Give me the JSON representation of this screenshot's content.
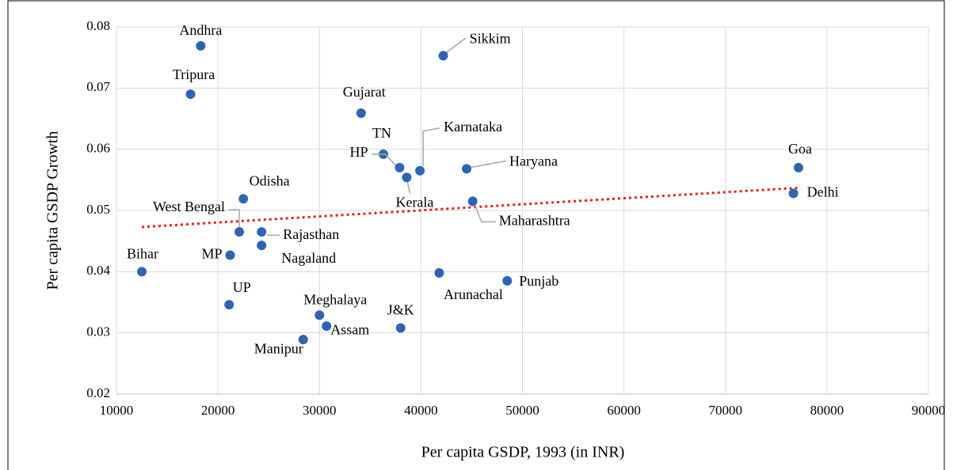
{
  "chart_data": {
    "type": "scatter",
    "x_label": "Per capita GSDP, 1993 (in INR)",
    "y_label": "Per capita GSDP Growth",
    "point_labels": [
      "Andhra",
      "Tripura",
      "Sikkim",
      "Gujarat",
      "TN",
      "HP",
      "Kerala",
      "Karnataka",
      "Haryana",
      "Maharashtra",
      "Goa",
      "Delhi",
      "Odisha",
      "West Bengal",
      "Rajasthan",
      "Nagaland",
      "MP",
      "Bihar",
      "UP",
      "Meghalaya",
      "Assam",
      "Manipur",
      "J&K",
      "Arunachal",
      "Punjab"
    ],
    "x": [
      18300,
      17300,
      42200,
      34100,
      36300,
      37900,
      38600,
      39900,
      44500,
      45100,
      77200,
      76700,
      22500,
      22100,
      24300,
      24300,
      21200,
      12500,
      21100,
      30000,
      30700,
      28400,
      38000,
      41800,
      48500
    ],
    "values": [
      0.0769,
      0.069,
      0.0753,
      0.0659,
      0.0592,
      0.057,
      0.0554,
      0.0565,
      0.0568,
      0.0515,
      0.057,
      0.0528,
      0.0519,
      0.0465,
      0.0465,
      0.0443,
      0.0427,
      0.04,
      0.0346,
      0.0329,
      0.0311,
      0.0289,
      0.0308,
      0.0398,
      0.0385
    ],
    "color": "#2e64b4",
    "trendline": {
      "x": [
        12500,
        77200
      ],
      "values": [
        0.0473,
        0.0537
      ],
      "color": "#e02020"
    },
    "xlim": [
      10000,
      90000
    ],
    "xticks": [
      10000,
      20000,
      30000,
      40000,
      50000,
      60000,
      70000,
      80000,
      90000
    ],
    "ylim": [
      0.02,
      0.08
    ],
    "yticks": [
      0.02,
      0.03,
      0.04,
      0.05,
      0.06,
      0.07,
      0.08
    ],
    "grid": true
  }
}
